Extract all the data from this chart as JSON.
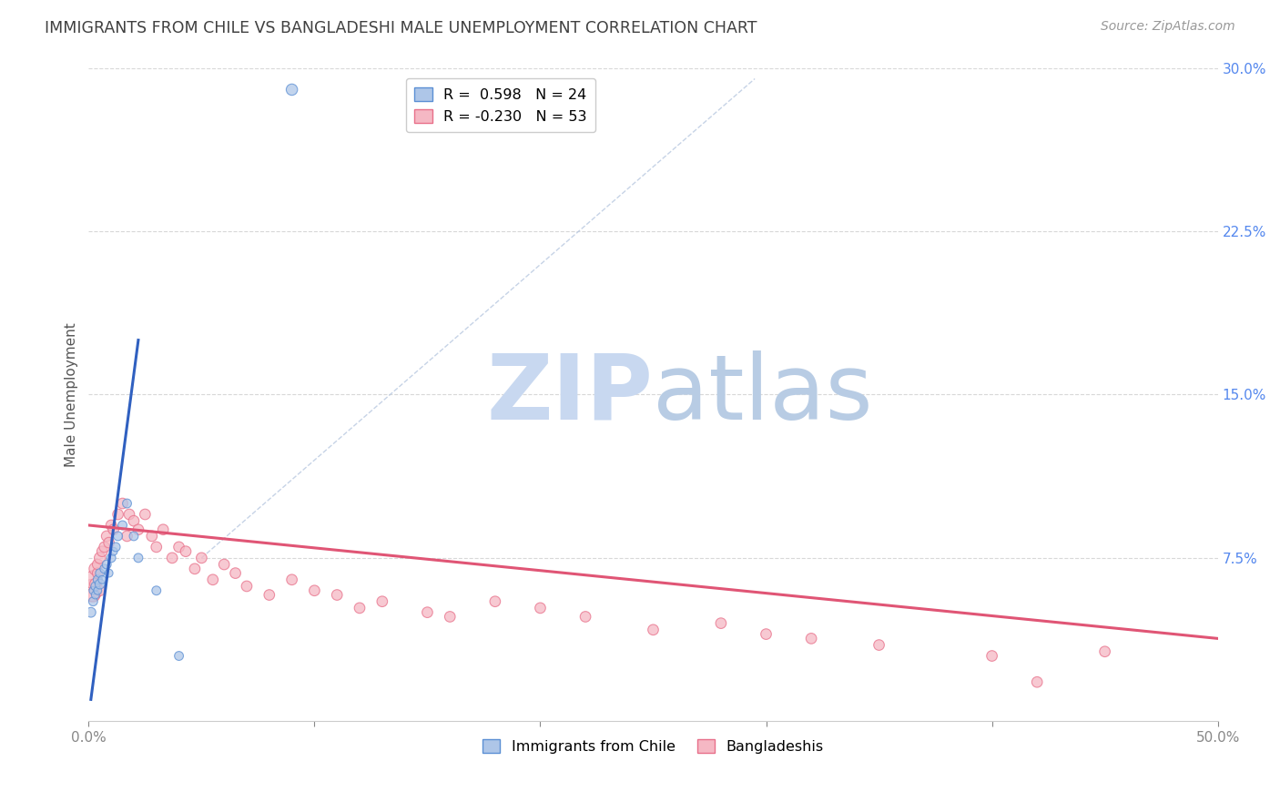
{
  "title": "IMMIGRANTS FROM CHILE VS BANGLADESHI MALE UNEMPLOYMENT CORRELATION CHART",
  "source": "Source: ZipAtlas.com",
  "ylabel": "Male Unemployment",
  "xlim": [
    0.0,
    0.5
  ],
  "ylim": [
    0.0,
    0.3
  ],
  "xticks": [
    0.0,
    0.1,
    0.2,
    0.3,
    0.4,
    0.5
  ],
  "xticklabels": [
    "0.0%",
    "",
    "",
    "",
    "",
    "50.0%"
  ],
  "yticks_right": [
    0.0,
    0.075,
    0.15,
    0.225,
    0.3
  ],
  "yticklabels_right": [
    "",
    "7.5%",
    "15.0%",
    "22.5%",
    "30.0%"
  ],
  "legend_r1": "R =  0.598",
  "legend_n1": "N = 24",
  "legend_r2": "R = -0.230",
  "legend_n2": "N = 53",
  "color_blue_fill": "#aec6e8",
  "color_pink_fill": "#f5b8c4",
  "color_blue_edge": "#5b8fd4",
  "color_pink_edge": "#e8708a",
  "color_blue_line": "#3060c0",
  "color_pink_line": "#e05575",
  "color_dashed": "#b8c8e0",
  "watermark_zip_color": "#c8d8f0",
  "watermark_atlas_color": "#c8d8e8",
  "title_color": "#404040",
  "right_axis_color": "#5588ee",
  "background_color": "#ffffff",
  "grid_color": "#d8d8d8",
  "chile_scatter_x": [
    0.001,
    0.002,
    0.002,
    0.003,
    0.003,
    0.004,
    0.004,
    0.005,
    0.005,
    0.006,
    0.007,
    0.008,
    0.009,
    0.01,
    0.011,
    0.012,
    0.013,
    0.015,
    0.017,
    0.02,
    0.022,
    0.03,
    0.04,
    0.09
  ],
  "chile_scatter_y": [
    0.05,
    0.055,
    0.06,
    0.058,
    0.062,
    0.06,
    0.065,
    0.063,
    0.068,
    0.065,
    0.07,
    0.072,
    0.068,
    0.075,
    0.078,
    0.08,
    0.085,
    0.09,
    0.1,
    0.085,
    0.075,
    0.06,
    0.03,
    0.29
  ],
  "chile_scatter_sizes": [
    60,
    50,
    40,
    40,
    50,
    40,
    50,
    60,
    50,
    40,
    50,
    50,
    40,
    50,
    40,
    50,
    50,
    50,
    50,
    50,
    50,
    50,
    50,
    80
  ],
  "bang_scatter_x": [
    0.001,
    0.002,
    0.002,
    0.003,
    0.003,
    0.004,
    0.004,
    0.005,
    0.005,
    0.006,
    0.007,
    0.008,
    0.009,
    0.01,
    0.011,
    0.013,
    0.015,
    0.017,
    0.018,
    0.02,
    0.022,
    0.025,
    0.028,
    0.03,
    0.033,
    0.037,
    0.04,
    0.043,
    0.047,
    0.05,
    0.055,
    0.06,
    0.065,
    0.07,
    0.08,
    0.09,
    0.1,
    0.11,
    0.12,
    0.13,
    0.15,
    0.16,
    0.18,
    0.2,
    0.22,
    0.25,
    0.28,
    0.3,
    0.32,
    0.35,
    0.4,
    0.42,
    0.45
  ],
  "bang_scatter_y": [
    0.06,
    0.065,
    0.058,
    0.07,
    0.063,
    0.068,
    0.072,
    0.075,
    0.06,
    0.078,
    0.08,
    0.085,
    0.082,
    0.09,
    0.088,
    0.095,
    0.1,
    0.085,
    0.095,
    0.092,
    0.088,
    0.095,
    0.085,
    0.08,
    0.088,
    0.075,
    0.08,
    0.078,
    0.07,
    0.075,
    0.065,
    0.072,
    0.068,
    0.062,
    0.058,
    0.065,
    0.06,
    0.058,
    0.052,
    0.055,
    0.05,
    0.048,
    0.055,
    0.052,
    0.048,
    0.042,
    0.045,
    0.04,
    0.038,
    0.035,
    0.03,
    0.018,
    0.032
  ],
  "bang_scatter_sizes": [
    300,
    200,
    120,
    100,
    80,
    70,
    70,
    80,
    70,
    70,
    70,
    70,
    70,
    70,
    70,
    70,
    70,
    70,
    70,
    70,
    70,
    70,
    70,
    70,
    70,
    70,
    70,
    70,
    70,
    70,
    70,
    70,
    70,
    70,
    70,
    70,
    70,
    70,
    70,
    70,
    70,
    70,
    70,
    70,
    70,
    70,
    70,
    70,
    70,
    70,
    70,
    70,
    70
  ],
  "blue_line_x": [
    0.001,
    0.022
  ],
  "blue_line_y": [
    0.01,
    0.175
  ],
  "pink_line_x": [
    0.0,
    0.5
  ],
  "pink_line_y": [
    0.09,
    0.038
  ],
  "diag_line_x": [
    0.05,
    0.295
  ],
  "diag_line_y": [
    0.075,
    0.295
  ]
}
